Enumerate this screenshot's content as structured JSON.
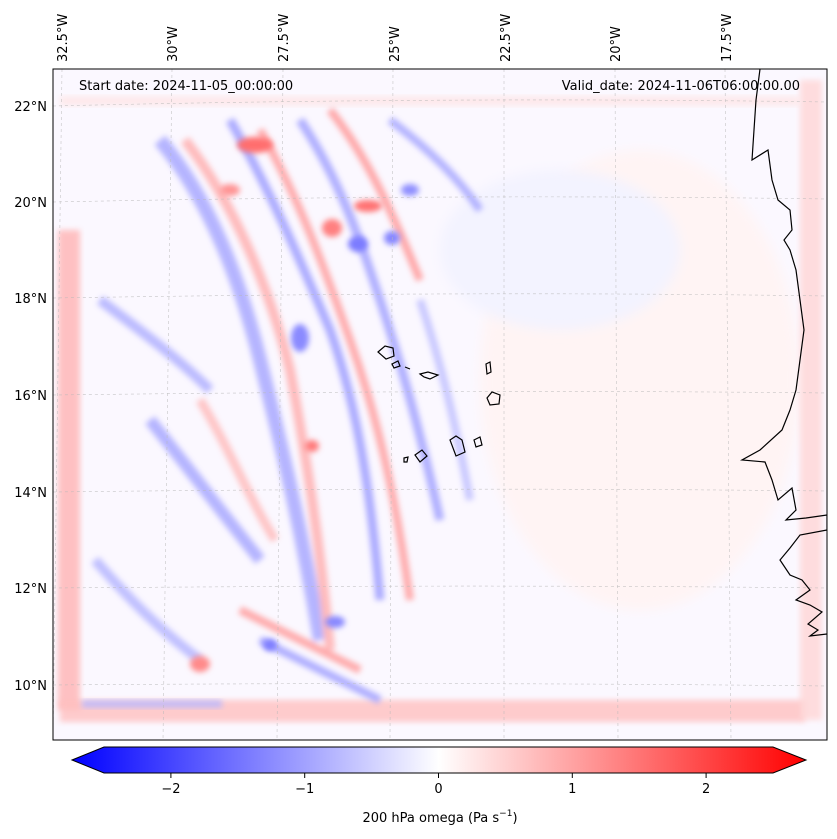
{
  "header": {
    "start_label": "Start date: 2024-11-05_00:00:00",
    "valid_label": "Valid_date: 2024-11-06T06:00:00.00"
  },
  "map": {
    "lon_labels": [
      "32.5°W",
      "30°W",
      "27.5°W",
      "25°W",
      "22.5°W",
      "20°W",
      "17.5°W"
    ],
    "lat_labels": [
      "22°N",
      "20°N",
      "18°N",
      "16°N",
      "14°N",
      "12°N",
      "10°N"
    ],
    "field_colors": {
      "negative": "#0000ff",
      "zero": "#ffffff",
      "positive": "#ff0000"
    }
  },
  "colorbar": {
    "tick_labels": [
      "−2",
      "−1",
      "0",
      "1",
      "2"
    ],
    "label_main": "200 hPa omega (Pa s",
    "label_sup": "−1",
    "label_close": ")",
    "range": [
      -2.7,
      2.7
    ],
    "ticks": [
      -2,
      -1,
      0,
      1,
      2
    ]
  }
}
